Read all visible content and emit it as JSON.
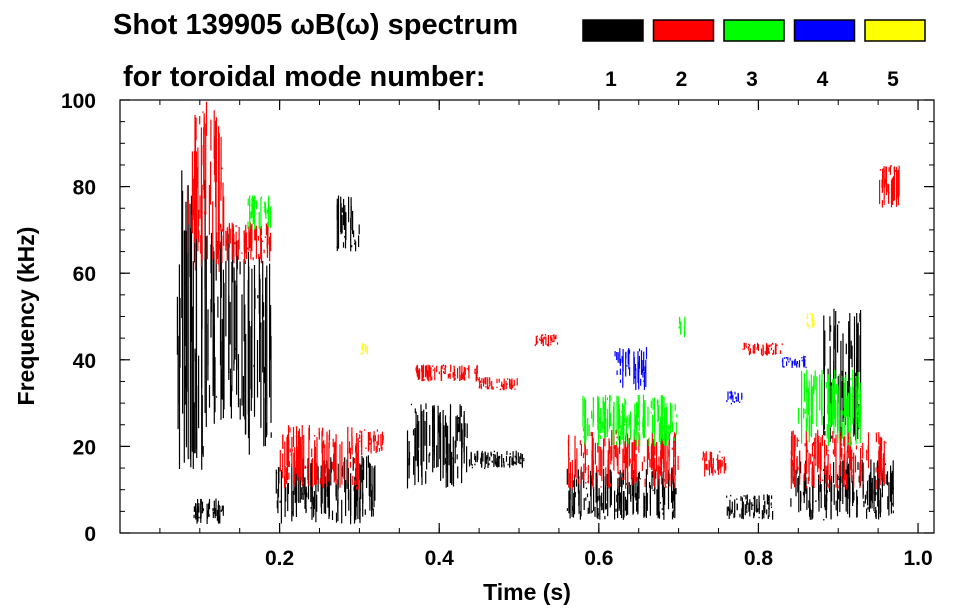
{
  "chart_data": {
    "type": "scatter",
    "title_line1": "Shot 139905 ωB(ω) spectrum",
    "title_line2": "for toroidal mode number:",
    "xlabel": "Time (s)",
    "ylabel": "Frequency (kHz)",
    "xlim": [
      0.0,
      1.02
    ],
    "ylim": [
      0,
      100
    ],
    "x_ticks": [
      0.2,
      0.4,
      0.6,
      0.8,
      1.0
    ],
    "x_tick_labels": [
      "0.2",
      "0.4",
      "0.6",
      "0.8",
      "1.0"
    ],
    "x_minor_step": 0.05,
    "y_ticks": [
      0,
      20,
      40,
      60,
      80,
      100
    ],
    "y_tick_labels": [
      "0",
      "20",
      "40",
      "60",
      "80",
      "100"
    ],
    "y_minor_step": 5,
    "legend": [
      {
        "label": "1",
        "color": "#000000"
      },
      {
        "label": "2",
        "color": "#ff0000"
      },
      {
        "label": "3",
        "color": "#00ff00"
      },
      {
        "label": "4",
        "color": "#0000ff"
      },
      {
        "label": "5",
        "color": "#ffff00"
      }
    ],
    "series": [
      {
        "name": "1",
        "color": "#000000",
        "regions": [
          {
            "t": [
              0.07,
              0.11
            ],
            "f": [
              12,
              84
            ]
          },
          {
            "t": [
              0.11,
              0.15
            ],
            "f": [
              25,
              70
            ]
          },
          {
            "t": [
              0.15,
              0.19
            ],
            "f": [
              18,
              65
            ]
          },
          {
            "t": [
              0.09,
              0.13
            ],
            "f": [
              2,
              8
            ]
          },
          {
            "t": [
              0.195,
              0.32
            ],
            "f": [
              2,
              18
            ]
          },
          {
            "t": [
              0.27,
              0.3
            ],
            "f": [
              65,
              78
            ]
          },
          {
            "t": [
              0.36,
              0.44
            ],
            "f": [
              10,
              30
            ]
          },
          {
            "t": [
              0.44,
              0.51
            ],
            "f": [
              15,
              19
            ]
          },
          {
            "t": [
              0.56,
              0.7
            ],
            "f": [
              3,
              15
            ]
          },
          {
            "t": [
              0.76,
              0.82
            ],
            "f": [
              3,
              9
            ]
          },
          {
            "t": [
              0.84,
              0.97
            ],
            "f": [
              3,
              17
            ]
          },
          {
            "t": [
              0.88,
              0.93
            ],
            "f": [
              20,
              52
            ]
          }
        ]
      },
      {
        "name": "2",
        "color": "#ff0000",
        "regions": [
          {
            "t": [
              0.08,
              0.13
            ],
            "f": [
              60,
              100
            ]
          },
          {
            "t": [
              0.12,
              0.19
            ],
            "f": [
              62,
              72
            ]
          },
          {
            "t": [
              0.2,
              0.3
            ],
            "f": [
              10,
              25
            ]
          },
          {
            "t": [
              0.3,
              0.33
            ],
            "f": [
              18,
              24
            ]
          },
          {
            "t": [
              0.37,
              0.45
            ],
            "f": [
              35,
              39
            ]
          },
          {
            "t": [
              0.45,
              0.5
            ],
            "f": [
              33,
              36
            ]
          },
          {
            "t": [
              0.52,
              0.55
            ],
            "f": [
              43,
              46
            ]
          },
          {
            "t": [
              0.56,
              0.7
            ],
            "f": [
              10,
              24
            ]
          },
          {
            "t": [
              0.73,
              0.76
            ],
            "f": [
              13,
              19
            ]
          },
          {
            "t": [
              0.78,
              0.83
            ],
            "f": [
              41,
              44
            ]
          },
          {
            "t": [
              0.84,
              0.96
            ],
            "f": [
              10,
              24
            ]
          },
          {
            "t": [
              0.95,
              0.98
            ],
            "f": [
              75,
              85
            ]
          }
        ]
      },
      {
        "name": "3",
        "color": "#00ff00",
        "regions": [
          {
            "t": [
              0.16,
              0.19
            ],
            "f": [
              70,
              78
            ]
          },
          {
            "t": [
              0.58,
              0.7
            ],
            "f": [
              20,
              32
            ]
          },
          {
            "t": [
              0.7,
              0.71
            ],
            "f": [
              45,
              50
            ]
          },
          {
            "t": [
              0.85,
              0.93
            ],
            "f": [
              20,
              38
            ]
          }
        ]
      },
      {
        "name": "4",
        "color": "#0000ff",
        "regions": [
          {
            "t": [
              0.62,
              0.66
            ],
            "f": [
              33,
              43
            ]
          },
          {
            "t": [
              0.76,
              0.78
            ],
            "f": [
              30,
              33
            ]
          },
          {
            "t": [
              0.83,
              0.86
            ],
            "f": [
              38,
              41
            ]
          }
        ]
      },
      {
        "name": "5",
        "color": "#ffff00",
        "regions": [
          {
            "t": [
              0.3,
              0.31
            ],
            "f": [
              41,
              44
            ]
          },
          {
            "t": [
              0.86,
              0.87
            ],
            "f": [
              47,
              51
            ]
          }
        ]
      }
    ]
  }
}
